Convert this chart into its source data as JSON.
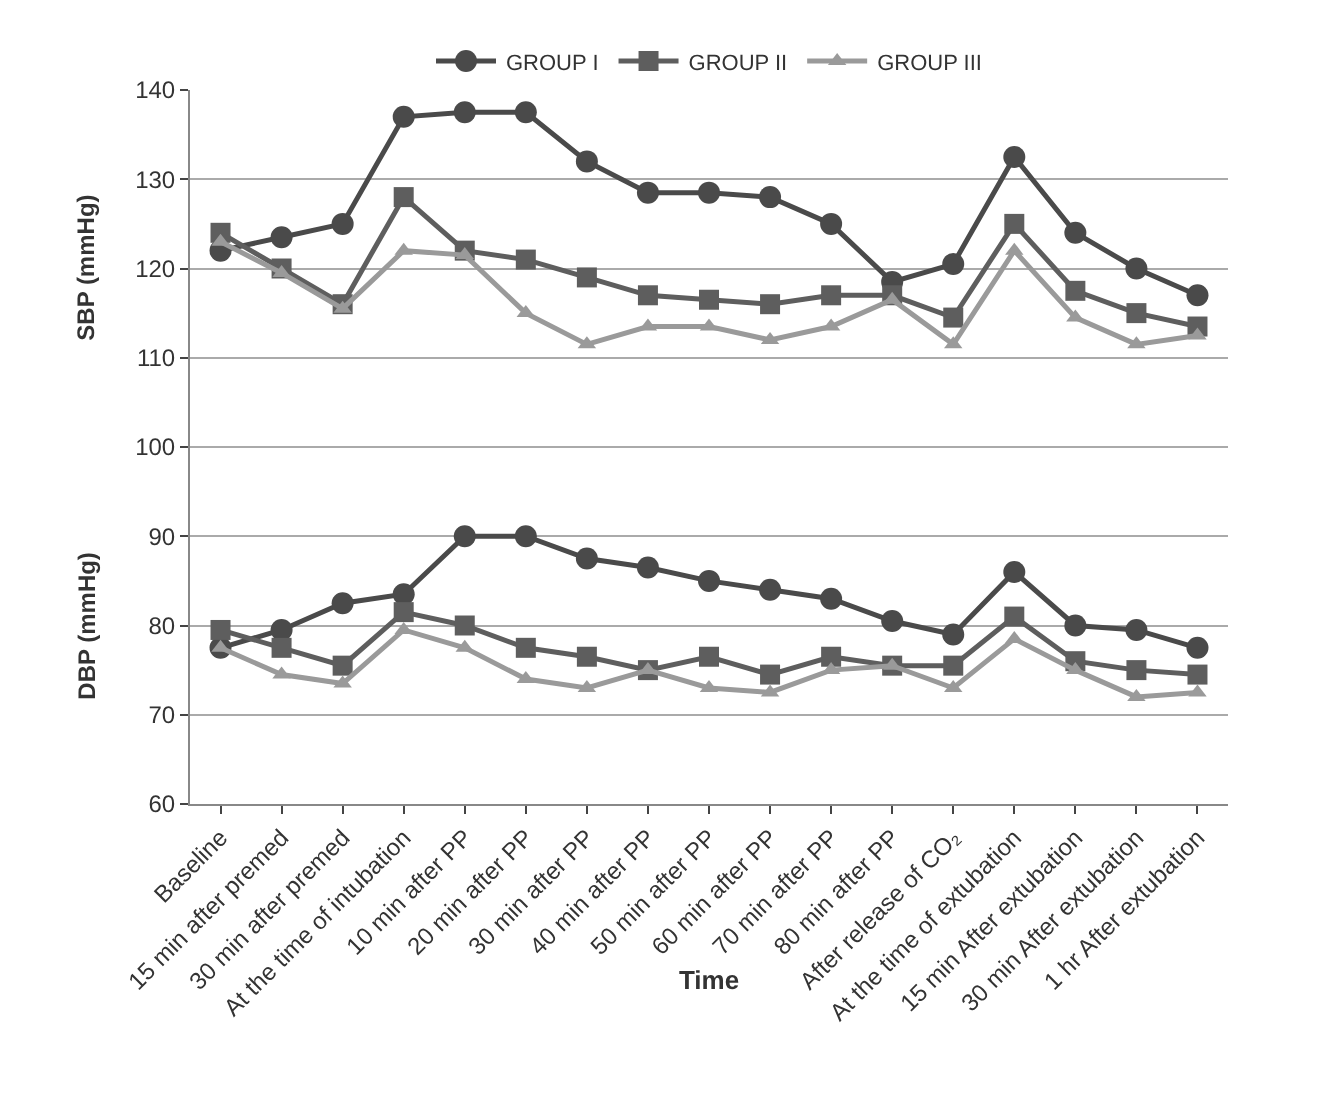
{
  "chart_data": {
    "type": "line",
    "xlabel": "Time",
    "ylabel": "SBP (mmHg)",
    "annotations": [
      "DBP (mmHg)"
    ],
    "categories": [
      "Baseline",
      "15 min after premed",
      "30 min after premed",
      "At the time of intubation",
      "10 min after PP",
      "20 min after PP",
      "30 min after PP",
      "40 min after PP",
      "50 min after PP",
      "60 min after PP",
      "70 min after PP",
      "80 min after PP",
      "After release of CO₂",
      "At the time of extubation",
      "15 min After extubation",
      "30 min After extubation",
      "1 hr After extubation"
    ],
    "series": [
      {
        "name": "GROUP I",
        "color": "#4a4a4a",
        "marker": "circle",
        "values": [
          122,
          123.5,
          125,
          137,
          137.5,
          137.5,
          132,
          128.5,
          128.5,
          128,
          125,
          118.5,
          120.5,
          132.5,
          124,
          120,
          117
        ]
      },
      {
        "name": "GROUP II",
        "color": "#5e5e5e",
        "marker": "square",
        "values": [
          124,
          120,
          116,
          128,
          122,
          121,
          119,
          117,
          116.5,
          116,
          117,
          117,
          114.5,
          125,
          117.5,
          115,
          113.5
        ]
      },
      {
        "name": "GROUP III",
        "color": "#9a9a9a",
        "marker": "triangle",
        "values": [
          123,
          119.5,
          115.5,
          122,
          121.5,
          115,
          111.5,
          113.5,
          113.5,
          112,
          113.5,
          116.5,
          111.5,
          122,
          114.5,
          111.5,
          112.5
        ]
      },
      {
        "color": "#4a4a4a",
        "marker": "circle",
        "values": [
          77.5,
          79.5,
          82.5,
          83.5,
          90,
          90,
          87.5,
          86.5,
          85,
          84,
          83,
          80.5,
          79,
          86,
          80,
          79.5,
          77.5
        ]
      },
      {
        "color": "#5e5e5e",
        "marker": "square",
        "values": [
          79.5,
          77.5,
          75.5,
          81.5,
          80,
          77.5,
          76.5,
          75,
          76.5,
          74.5,
          76.5,
          75.5,
          75.5,
          81,
          76,
          75,
          74.5
        ]
      },
      {
        "color": "#9a9a9a",
        "marker": "triangle",
        "values": [
          77.5,
          74.5,
          73.5,
          79.5,
          77.5,
          74,
          73,
          75,
          73,
          72.5,
          75,
          75.5,
          73,
          78.5,
          75,
          72,
          72.5
        ]
      }
    ],
    "ylim": [
      60,
      140
    ],
    "yticks": [
      60,
      70,
      80,
      90,
      100,
      110,
      120,
      130,
      140
    ],
    "grid": "y",
    "legend": "top",
    "line_style": "solid"
  }
}
